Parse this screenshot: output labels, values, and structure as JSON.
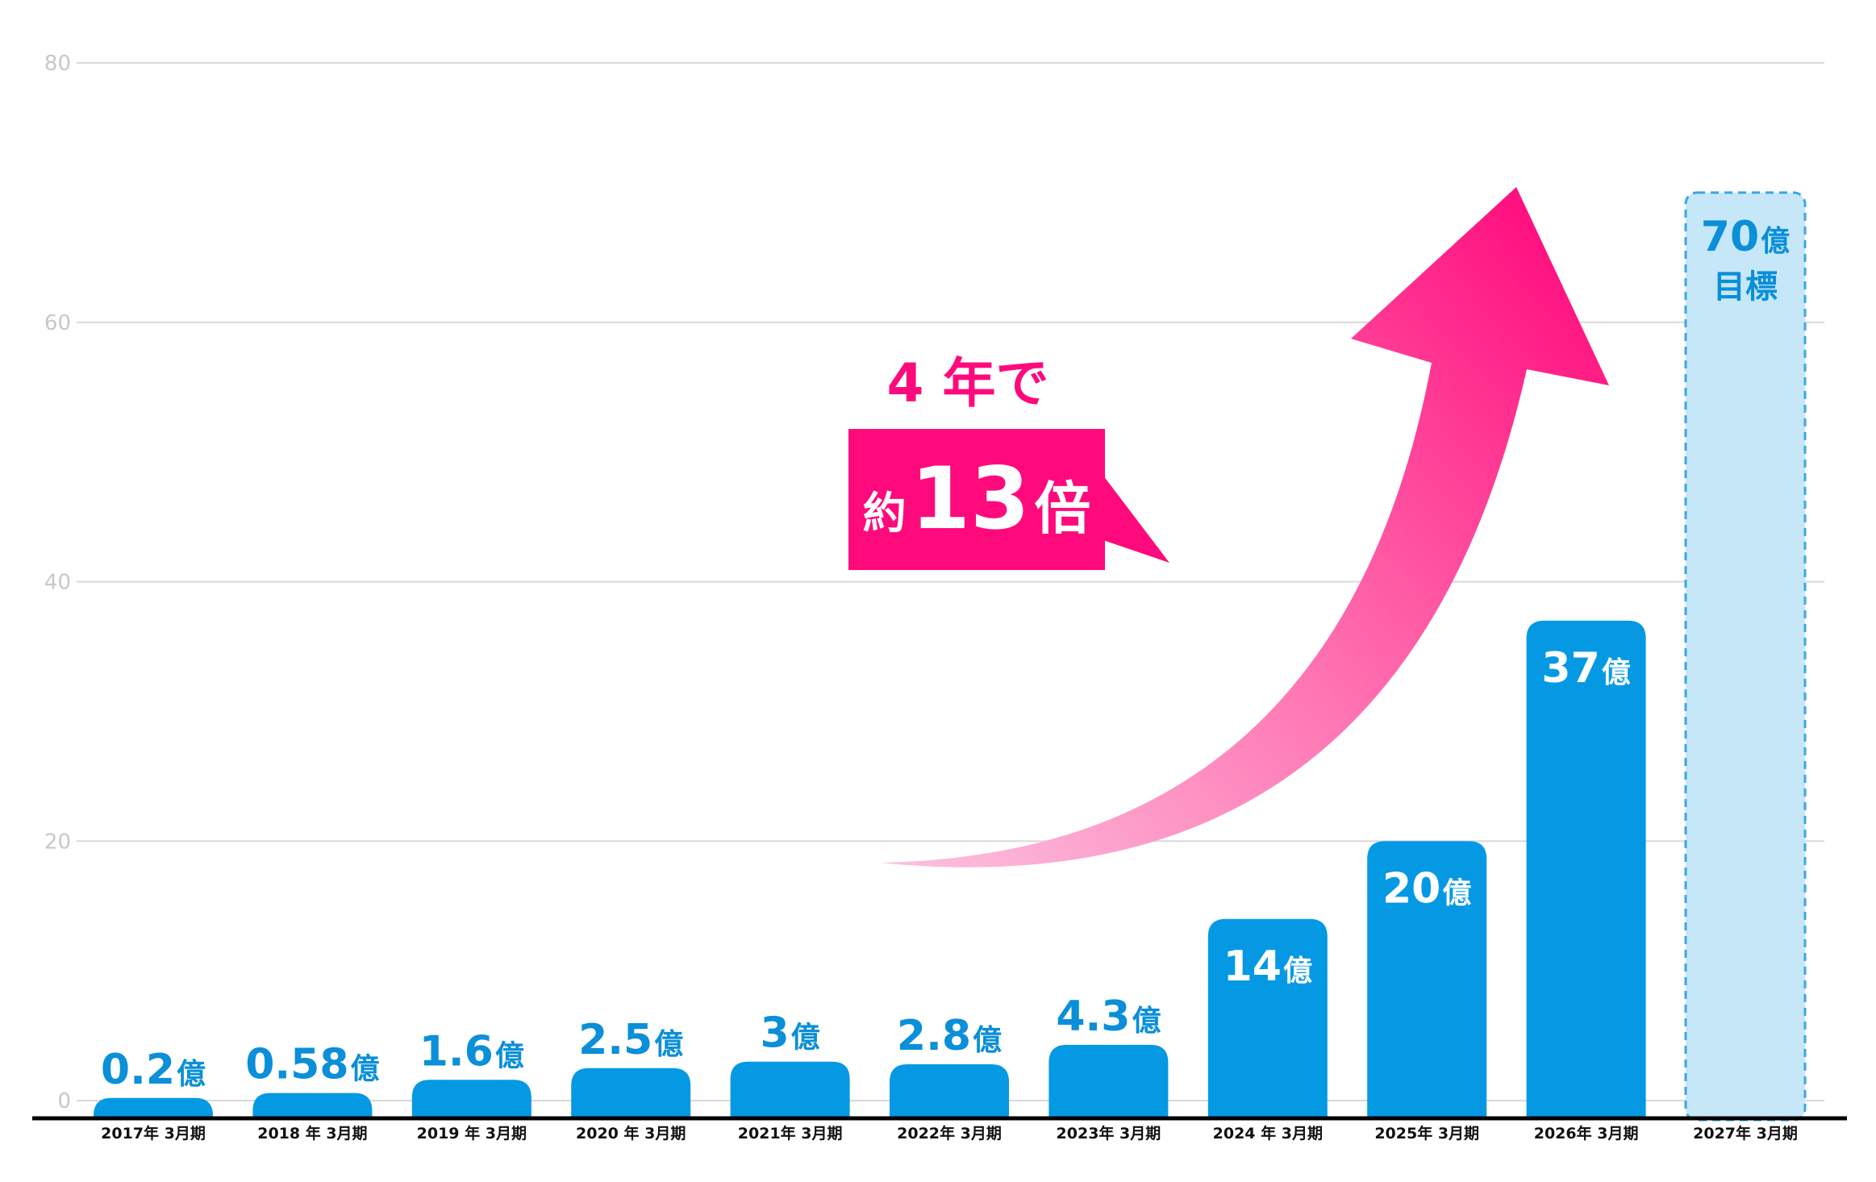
{
  "chart_data": {
    "type": "bar",
    "categories": [
      "2017年 3月期",
      "2018 年 3月期",
      "2019 年 3月期",
      "2020 年 3月期",
      "2021年 3月期",
      "2022年 3月期",
      "2023年 3月期",
      "2024 年 3月期",
      "2025年 3月期",
      "2026年 3月期",
      "2027年 3月期"
    ],
    "values": [
      0.2,
      0.58,
      1.6,
      2.5,
      3,
      2.8,
      4.3,
      14,
      20,
      37,
      70
    ],
    "data_labels": [
      {
        "num": "0.2",
        "unit": "億"
      },
      {
        "num": "0.58",
        "unit": "億"
      },
      {
        "num": "1.6",
        "unit": "億"
      },
      {
        "num": "2.5",
        "unit": "億"
      },
      {
        "num": "3",
        "unit": "億"
      },
      {
        "num": "2.8",
        "unit": "億"
      },
      {
        "num": "4.3",
        "unit": "億"
      },
      {
        "num": "14",
        "unit": "億"
      },
      {
        "num": "20",
        "unit": "億"
      },
      {
        "num": "37",
        "unit": "億"
      },
      {
        "num": "70",
        "unit": "億",
        "note": "目標"
      }
    ],
    "target_index": 10,
    "yticks": [
      0,
      20,
      40,
      60,
      80
    ],
    "ylim": [
      0,
      80
    ],
    "grid": true,
    "title": "",
    "xlabel": "",
    "ylabel": "",
    "colors": {
      "bar": "#0599e4",
      "target_fill": "#c6e7f8",
      "target_border": "#3aa6e5",
      "label_dark": "#0a8fd8",
      "label_light": "#ffffff",
      "accent": "#ff0a7c",
      "grid": "#d9d9d9",
      "axis": "#000000"
    }
  },
  "callout": {
    "top_text": "4 年で",
    "prefix": "約",
    "number": "13",
    "suffix": "倍"
  }
}
